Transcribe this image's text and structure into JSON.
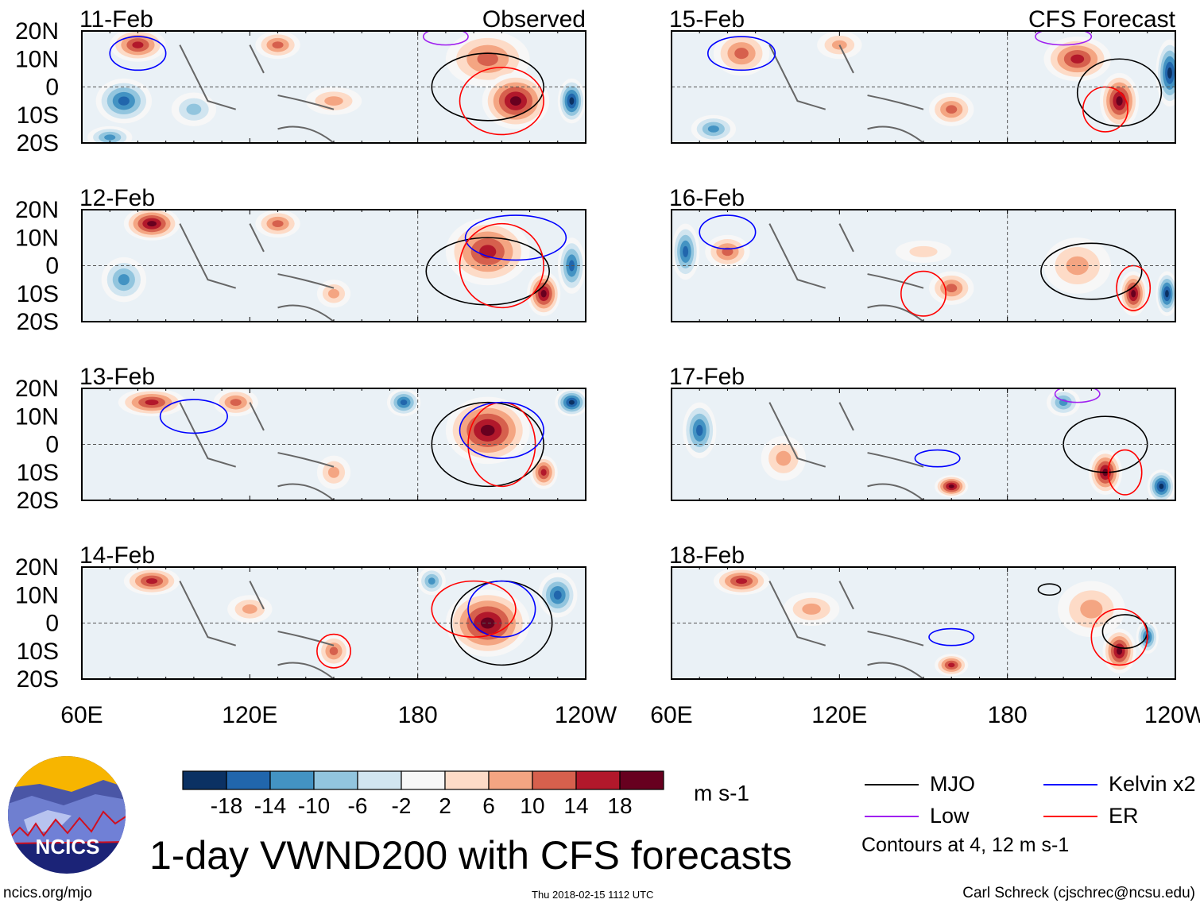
{
  "chart_data": {
    "type": "heatmap",
    "title": "1-day VWND200 with CFS forecasts",
    "variable": "VWND200",
    "units": "m s-1",
    "columns": [
      {
        "label": "Observed",
        "panels": [
          "11-Feb",
          "12-Feb",
          "13-Feb",
          "14-Feb"
        ]
      },
      {
        "label": "CFS Forecast",
        "panels": [
          "15-Feb",
          "16-Feb",
          "17-Feb",
          "18-Feb"
        ]
      }
    ],
    "lat_ticks": [
      "20N",
      "10N",
      "0",
      "10S",
      "20S"
    ],
    "lon_ticks": [
      "60E",
      "120E",
      "180",
      "120W"
    ],
    "xlim": [
      60,
      240
    ],
    "ylim": [
      -20,
      20
    ],
    "colorbar": {
      "ticks": [
        "-18",
        "-14",
        "-10",
        "-6",
        "-2",
        "2",
        "6",
        "10",
        "14",
        "18"
      ],
      "colors": [
        "#0b3163",
        "#2166ac",
        "#4393c3",
        "#92c5de",
        "#d1e5f0",
        "#f7f7f7",
        "#fddbc7",
        "#f4a582",
        "#d6604d",
        "#b2182b",
        "#67001f"
      ],
      "units": "m s-1"
    },
    "legend": [
      {
        "label": "MJO",
        "color": "#000000"
      },
      {
        "label": "Kelvin x2",
        "color": "#0000ff"
      },
      {
        "label": "Low",
        "color": "#a020f0"
      },
      {
        "label": "ER",
        "color": "#ff0000"
      }
    ],
    "contour_note": "Contours at 4, 12 m s-1"
  },
  "footer": {
    "logo_text": "NCICS",
    "url": "ncics.org/mjo",
    "timestamp": "Thu 2018-02-15 1112 UTC",
    "author": "Carl Schreck (cjschrec@ncsu.edu)"
  }
}
